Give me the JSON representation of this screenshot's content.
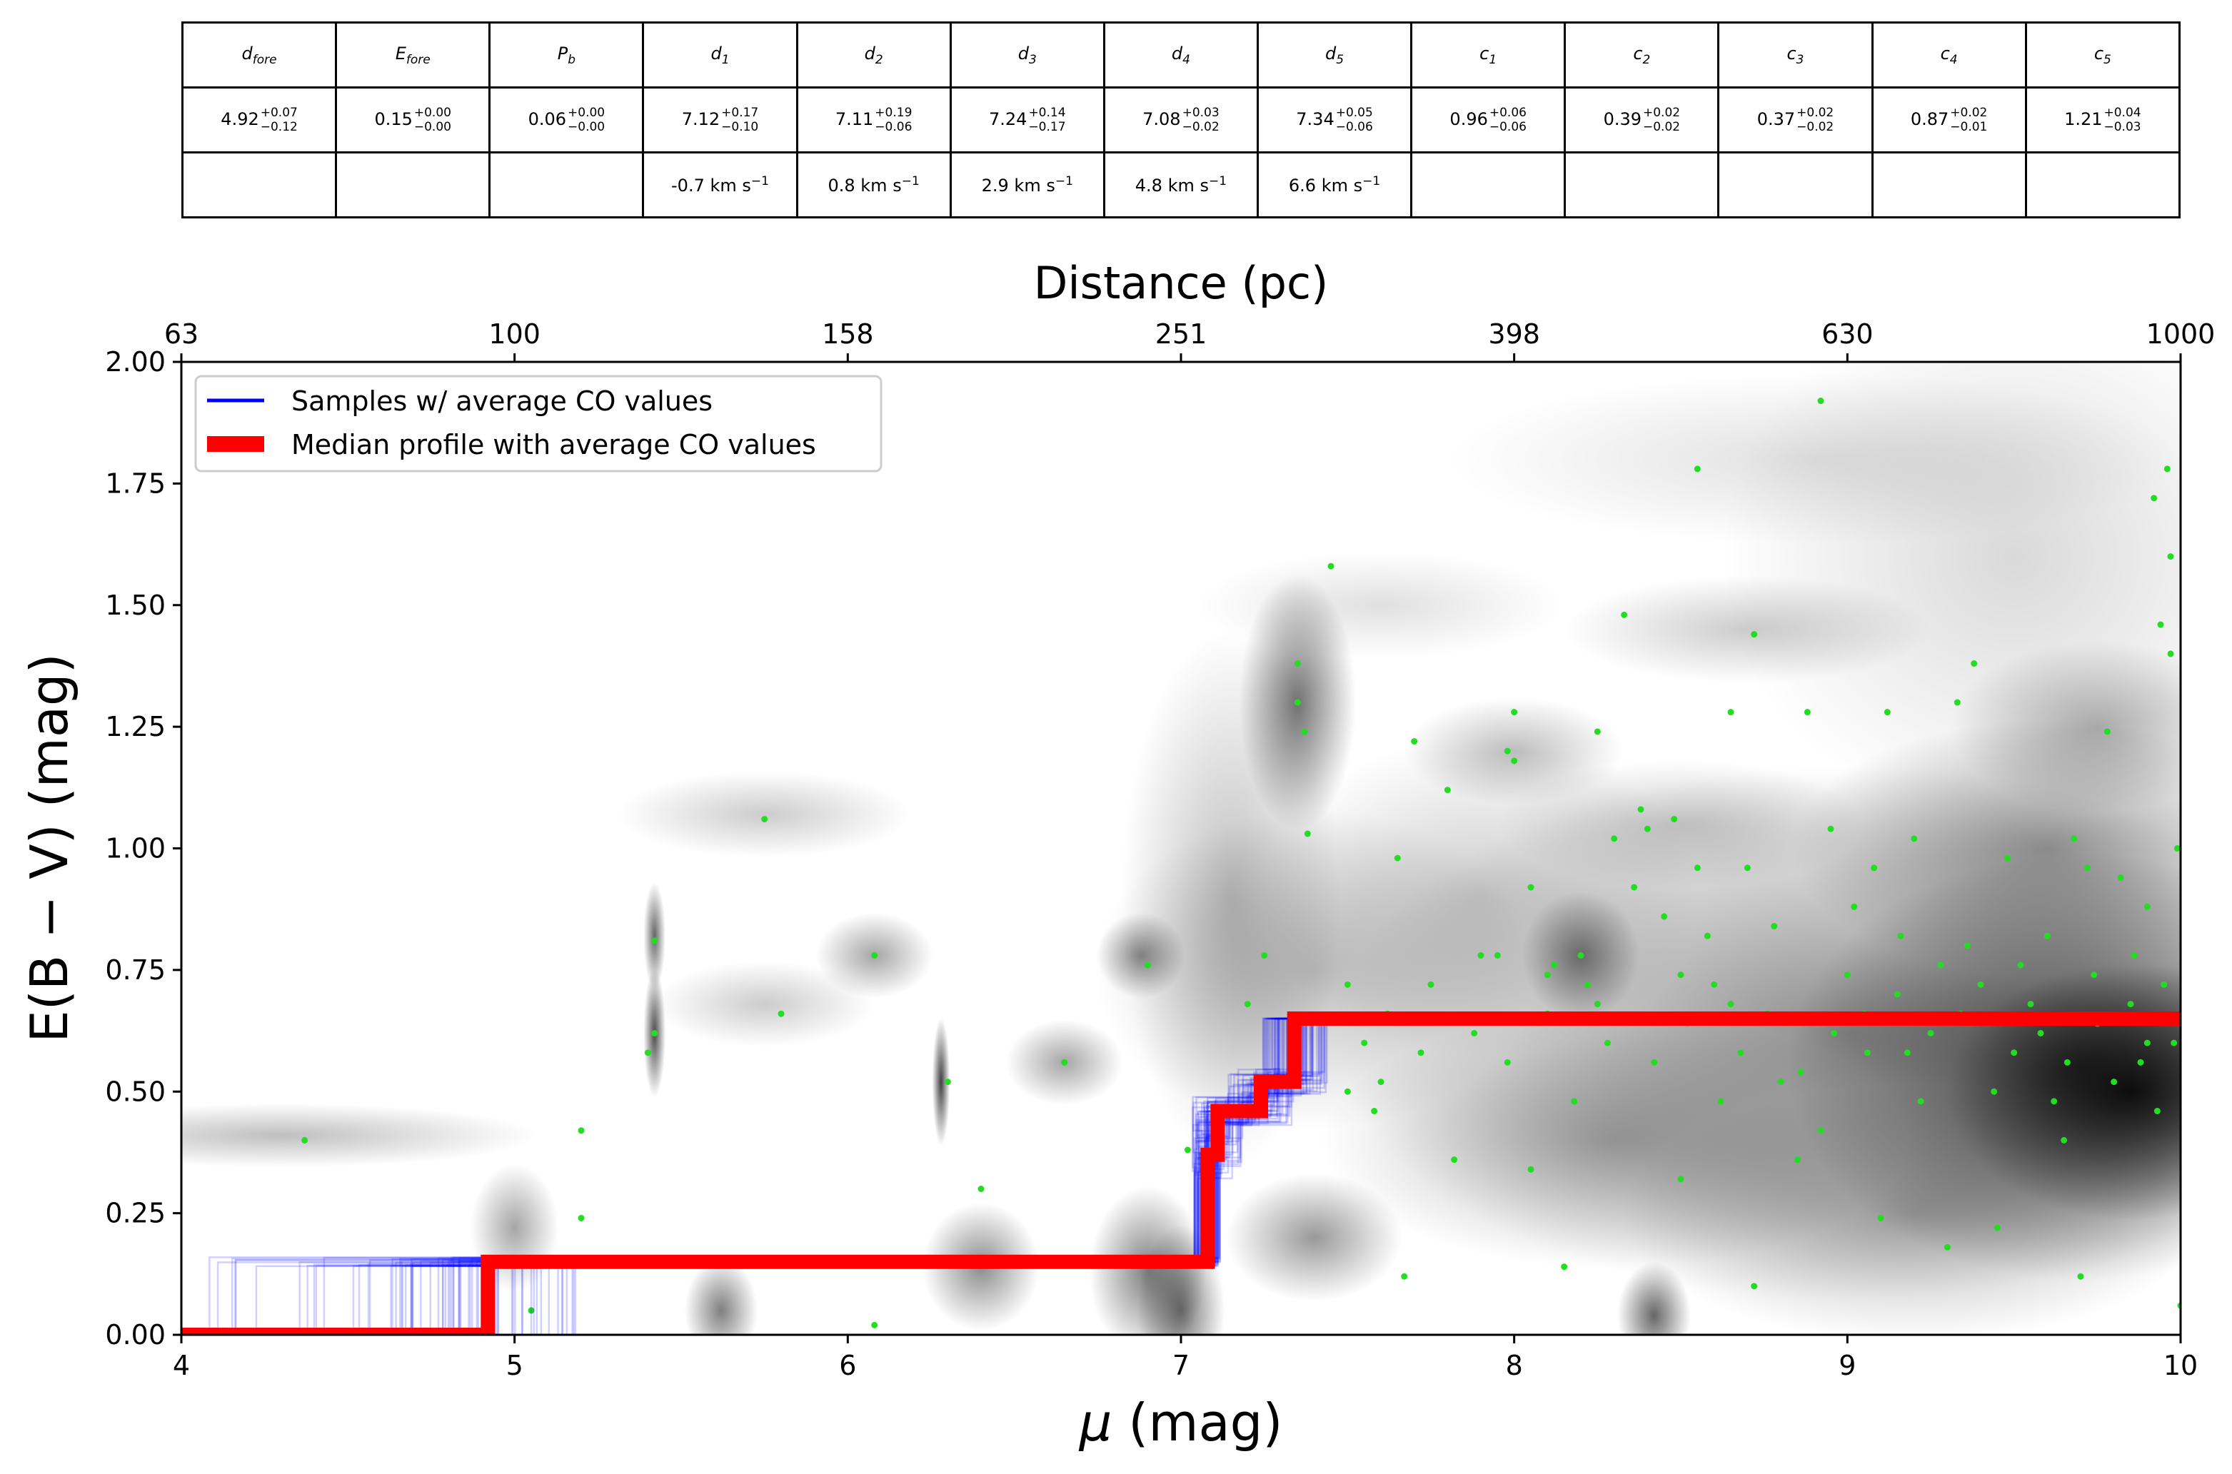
{
  "table": {
    "headers": [
      {
        "base": "d",
        "sub": "fore"
      },
      {
        "base": "E",
        "sub": "fore"
      },
      {
        "base": "P",
        "sub": "b"
      },
      {
        "base": "d",
        "sub": "1"
      },
      {
        "base": "d",
        "sub": "2"
      },
      {
        "base": "d",
        "sub": "3"
      },
      {
        "base": "d",
        "sub": "4"
      },
      {
        "base": "d",
        "sub": "5"
      },
      {
        "base": "c",
        "sub": "1"
      },
      {
        "base": "c",
        "sub": "2"
      },
      {
        "base": "c",
        "sub": "3"
      },
      {
        "base": "c",
        "sub": "4"
      },
      {
        "base": "c",
        "sub": "5"
      }
    ],
    "values": [
      {
        "v": "4.92",
        "plus": "+0.07",
        "minus": "−0.12"
      },
      {
        "v": "0.15",
        "plus": "+0.00",
        "minus": "−0.00"
      },
      {
        "v": "0.06",
        "plus": "+0.00",
        "minus": "−0.00"
      },
      {
        "v": "7.12",
        "plus": "+0.17",
        "minus": "−0.10"
      },
      {
        "v": "7.11",
        "plus": "+0.19",
        "minus": "−0.06"
      },
      {
        "v": "7.24",
        "plus": "+0.14",
        "minus": "−0.17"
      },
      {
        "v": "7.08",
        "plus": "+0.03",
        "minus": "−0.02"
      },
      {
        "v": "7.34",
        "plus": "+0.05",
        "minus": "−0.06"
      },
      {
        "v": "0.96",
        "plus": "+0.06",
        "minus": "−0.06"
      },
      {
        "v": "0.39",
        "plus": "+0.02",
        "minus": "−0.02"
      },
      {
        "v": "0.37",
        "plus": "+0.02",
        "minus": "−0.02"
      },
      {
        "v": "0.87",
        "plus": "+0.02",
        "minus": "−0.01"
      },
      {
        "v": "1.21",
        "plus": "+0.04",
        "minus": "−0.03"
      }
    ],
    "velocities": [
      "",
      "",
      "",
      "-0.7 km s",
      "0.8 km s",
      "2.9 km s",
      "4.8 km s",
      "6.6 km s",
      "",
      "",
      "",
      "",
      ""
    ],
    "velocity_exponent": "−1"
  },
  "chart_data": {
    "type": "scatter",
    "title": "",
    "xlabel_symbol": "μ",
    "xlabel_unit": " (mag)",
    "ylabel": "E(B − V) (mag)",
    "top_xlabel": "Distance (pc)",
    "xlim": [
      4,
      10
    ],
    "ylim": [
      0,
      2
    ],
    "xticks": [
      4,
      5,
      6,
      7,
      8,
      9,
      10
    ],
    "yticks": [
      "0.00",
      "0.25",
      "0.50",
      "0.75",
      "1.00",
      "1.25",
      "1.50",
      "1.75",
      "2.00"
    ],
    "top_ticks": [
      {
        "mu": 4,
        "label": "63"
      },
      {
        "mu": 5,
        "label": "100"
      },
      {
        "mu": 6,
        "label": "158"
      },
      {
        "mu": 7,
        "label": "251"
      },
      {
        "mu": 8,
        "label": "398"
      },
      {
        "mu": 9,
        "label": "630"
      },
      {
        "mu": 10,
        "label": "1000"
      }
    ],
    "legend": {
      "position": "upper-left",
      "items": [
        {
          "label": "Samples  w/ average CO values",
          "color": "#0000ff"
        },
        {
          "label": "Median profile with average CO values",
          "color": "#ff0000"
        }
      ]
    },
    "colors": {
      "samples": "#0000ff",
      "median": "#ff0000",
      "stars": "#22dd22",
      "density": "#000000"
    },
    "median_profile": [
      {
        "x": 4.0,
        "y": 0.0
      },
      {
        "x": 4.92,
        "y": 0.0
      },
      {
        "x": 4.92,
        "y": 0.15
      },
      {
        "x": 7.08,
        "y": 0.15
      },
      {
        "x": 7.08,
        "y": 0.37
      },
      {
        "x": 7.11,
        "y": 0.37
      },
      {
        "x": 7.11,
        "y": 0.46
      },
      {
        "x": 7.24,
        "y": 0.46
      },
      {
        "x": 7.24,
        "y": 0.52
      },
      {
        "x": 7.34,
        "y": 0.52
      },
      {
        "x": 7.34,
        "y": 0.65
      },
      {
        "x": 10.0,
        "y": 0.65
      }
    ],
    "density_blobs": [
      {
        "x": 4.3,
        "y": 0.41,
        "sx": 0.35,
        "sy": 0.03,
        "a": 0.25
      },
      {
        "x": 5.0,
        "y": 0.22,
        "sx": 0.06,
        "sy": 0.06,
        "a": 0.35
      },
      {
        "x": 5.42,
        "y": 0.62,
        "sx": 0.015,
        "sy": 0.06,
        "a": 0.7
      },
      {
        "x": 5.42,
        "y": 0.82,
        "sx": 0.015,
        "sy": 0.05,
        "a": 0.6
      },
      {
        "x": 5.62,
        "y": 0.05,
        "sx": 0.05,
        "sy": 0.05,
        "a": 0.5
      },
      {
        "x": 5.75,
        "y": 1.07,
        "sx": 0.2,
        "sy": 0.04,
        "a": 0.2
      },
      {
        "x": 5.75,
        "y": 0.68,
        "sx": 0.15,
        "sy": 0.04,
        "a": 0.2
      },
      {
        "x": 6.08,
        "y": 0.78,
        "sx": 0.08,
        "sy": 0.04,
        "a": 0.35
      },
      {
        "x": 6.28,
        "y": 0.52,
        "sx": 0.012,
        "sy": 0.06,
        "a": 0.75
      },
      {
        "x": 6.4,
        "y": 0.14,
        "sx": 0.08,
        "sy": 0.06,
        "a": 0.45
      },
      {
        "x": 6.65,
        "y": 0.56,
        "sx": 0.08,
        "sy": 0.04,
        "a": 0.35
      },
      {
        "x": 6.88,
        "y": 0.78,
        "sx": 0.06,
        "sy": 0.04,
        "a": 0.45
      },
      {
        "x": 6.9,
        "y": 0.13,
        "sx": 0.08,
        "sy": 0.08,
        "a": 0.5
      },
      {
        "x": 7.0,
        "y": 0.05,
        "sx": 0.06,
        "sy": 0.08,
        "a": 0.55
      },
      {
        "x": 7.35,
        "y": 1.3,
        "sx": 0.08,
        "sy": 0.12,
        "a": 0.55
      },
      {
        "x": 7.4,
        "y": 0.2,
        "sx": 0.12,
        "sy": 0.06,
        "a": 0.4
      },
      {
        "x": 7.15,
        "y": 0.9,
        "sx": 0.15,
        "sy": 0.25,
        "a": 0.25
      },
      {
        "x": 7.4,
        "y": 0.75,
        "sx": 0.3,
        "sy": 0.15,
        "a": 0.25
      },
      {
        "x": 7.6,
        "y": 1.5,
        "sx": 0.25,
        "sy": 0.05,
        "a": 0.12
      },
      {
        "x": 7.9,
        "y": 0.9,
        "sx": 0.3,
        "sy": 0.15,
        "a": 0.2
      },
      {
        "x": 8.2,
        "y": 0.78,
        "sx": 0.08,
        "sy": 0.06,
        "a": 0.45
      },
      {
        "x": 8.0,
        "y": 1.2,
        "sx": 0.15,
        "sy": 0.05,
        "a": 0.25
      },
      {
        "x": 8.3,
        "y": 0.4,
        "sx": 0.4,
        "sy": 0.12,
        "a": 0.3
      },
      {
        "x": 8.42,
        "y": 0.04,
        "sx": 0.05,
        "sy": 0.05,
        "a": 0.6
      },
      {
        "x": 8.5,
        "y": 1.05,
        "sx": 0.25,
        "sy": 0.06,
        "a": 0.2
      },
      {
        "x": 8.7,
        "y": 1.45,
        "sx": 0.25,
        "sy": 0.05,
        "a": 0.2
      },
      {
        "x": 8.9,
        "y": 1.8,
        "sx": 0.5,
        "sy": 0.08,
        "a": 0.12
      },
      {
        "x": 9.0,
        "y": 0.62,
        "sx": 0.7,
        "sy": 0.25,
        "a": 0.45
      },
      {
        "x": 9.7,
        "y": 0.55,
        "sx": 0.4,
        "sy": 0.2,
        "a": 0.7
      },
      {
        "x": 9.85,
        "y": 0.5,
        "sx": 0.25,
        "sy": 0.12,
        "a": 0.85
      },
      {
        "x": 9.6,
        "y": 1.0,
        "sx": 0.35,
        "sy": 0.12,
        "a": 0.4
      },
      {
        "x": 9.75,
        "y": 1.25,
        "sx": 0.2,
        "sy": 0.08,
        "a": 0.3
      },
      {
        "x": 9.5,
        "y": 1.6,
        "sx": 0.4,
        "sy": 0.25,
        "a": 0.15
      },
      {
        "x": 9.2,
        "y": 0.25,
        "sx": 0.4,
        "sy": 0.12,
        "a": 0.3
      }
    ],
    "stars": [
      [
        4.37,
        0.4
      ],
      [
        5.05,
        0.05
      ],
      [
        5.2,
        0.42
      ],
      [
        5.2,
        0.24
      ],
      [
        5.4,
        0.58
      ],
      [
        5.42,
        0.81
      ],
      [
        5.42,
        0.62
      ],
      [
        5.75,
        1.06
      ],
      [
        5.8,
        0.66
      ],
      [
        6.08,
        0.78
      ],
      [
        6.08,
        0.02
      ],
      [
        6.3,
        0.52
      ],
      [
        6.4,
        0.3
      ],
      [
        6.65,
        0.56
      ],
      [
        6.9,
        0.76
      ],
      [
        7.02,
        0.38
      ],
      [
        7.2,
        0.68
      ],
      [
        7.25,
        0.78
      ],
      [
        7.35,
        1.38
      ],
      [
        7.35,
        1.3
      ],
      [
        7.37,
        1.24
      ],
      [
        7.38,
        1.03
      ],
      [
        7.45,
        1.58
      ],
      [
        7.5,
        0.5
      ],
      [
        7.5,
        0.72
      ],
      [
        7.58,
        0.46
      ],
      [
        7.6,
        0.52
      ],
      [
        7.65,
        0.98
      ],
      [
        7.67,
        0.12
      ],
      [
        7.7,
        1.22
      ],
      [
        7.75,
        0.72
      ],
      [
        7.8,
        1.12
      ],
      [
        7.9,
        0.78
      ],
      [
        7.95,
        0.78
      ],
      [
        7.98,
        1.2
      ],
      [
        8.0,
        1.28
      ],
      [
        8.0,
        1.18
      ],
      [
        8.05,
        0.34
      ],
      [
        8.05,
        0.92
      ],
      [
        8.1,
        0.74
      ],
      [
        8.12,
        0.76
      ],
      [
        8.15,
        0.14
      ],
      [
        8.2,
        0.78
      ],
      [
        8.22,
        0.72
      ],
      [
        8.25,
        1.24
      ],
      [
        8.25,
        0.68
      ],
      [
        8.3,
        1.02
      ],
      [
        8.33,
        1.48
      ],
      [
        8.38,
        1.08
      ],
      [
        8.4,
        1.04
      ],
      [
        8.45,
        0.86
      ],
      [
        8.48,
        1.06
      ],
      [
        8.5,
        0.74
      ],
      [
        8.5,
        0.32
      ],
      [
        8.55,
        1.78
      ],
      [
        8.55,
        0.96
      ],
      [
        8.58,
        0.82
      ],
      [
        8.6,
        0.72
      ],
      [
        8.65,
        0.68
      ],
      [
        8.65,
        1.28
      ],
      [
        8.7,
        0.96
      ],
      [
        8.72,
        1.44
      ],
      [
        8.72,
        0.1
      ],
      [
        8.78,
        0.84
      ],
      [
        8.8,
        0.52
      ],
      [
        8.85,
        0.36
      ],
      [
        8.88,
        1.28
      ],
      [
        8.92,
        0.42
      ],
      [
        8.92,
        1.92
      ],
      [
        8.95,
        1.04
      ],
      [
        9.0,
        0.74
      ],
      [
        9.02,
        0.88
      ],
      [
        9.05,
        0.66
      ],
      [
        9.08,
        0.96
      ],
      [
        9.1,
        0.24
      ],
      [
        9.12,
        1.28
      ],
      [
        9.15,
        0.7
      ],
      [
        9.18,
        0.58
      ],
      [
        9.2,
        1.02
      ],
      [
        9.25,
        0.62
      ],
      [
        9.3,
        0.18
      ],
      [
        9.33,
        1.3
      ],
      [
        9.36,
        0.8
      ],
      [
        9.38,
        1.38
      ],
      [
        9.4,
        0.72
      ],
      [
        9.45,
        0.22
      ],
      [
        9.48,
        0.98
      ],
      [
        9.5,
        0.58
      ],
      [
        9.55,
        0.68
      ],
      [
        9.6,
        0.82
      ],
      [
        9.62,
        0.48
      ],
      [
        9.65,
        0.4
      ],
      [
        9.68,
        1.02
      ],
      [
        9.7,
        0.12
      ],
      [
        9.72,
        0.96
      ],
      [
        9.75,
        0.64
      ],
      [
        9.78,
        1.24
      ],
      [
        9.8,
        0.52
      ],
      [
        9.82,
        0.94
      ],
      [
        9.85,
        0.68
      ],
      [
        9.88,
        0.56
      ],
      [
        9.9,
        0.88
      ],
      [
        9.92,
        1.72
      ],
      [
        9.93,
        0.46
      ],
      [
        9.95,
        0.72
      ],
      [
        9.96,
        1.78
      ],
      [
        9.97,
        1.6
      ],
      [
        9.98,
        0.6
      ],
      [
        9.99,
        1.0
      ],
      [
        10.0,
        0.06
      ],
      [
        9.94,
        1.46
      ],
      [
        9.97,
        1.4
      ],
      [
        9.9,
        0.6
      ],
      [
        9.86,
        0.78
      ],
      [
        9.74,
        0.74
      ],
      [
        9.66,
        0.56
      ],
      [
        9.58,
        0.62
      ],
      [
        9.52,
        0.76
      ],
      [
        9.44,
        0.5
      ],
      [
        9.34,
        0.66
      ],
      [
        9.28,
        0.76
      ],
      [
        9.22,
        0.48
      ],
      [
        9.16,
        0.82
      ],
      [
        9.06,
        0.58
      ],
      [
        8.96,
        0.62
      ],
      [
        8.86,
        0.54
      ],
      [
        8.76,
        0.66
      ],
      [
        8.68,
        0.58
      ],
      [
        8.62,
        0.48
      ],
      [
        8.52,
        0.64
      ],
      [
        8.42,
        0.56
      ],
      [
        8.36,
        0.92
      ],
      [
        8.28,
        0.6
      ],
      [
        8.18,
        0.48
      ],
      [
        8.1,
        0.66
      ],
      [
        7.98,
        0.56
      ],
      [
        7.88,
        0.62
      ],
      [
        7.82,
        0.36
      ],
      [
        7.72,
        0.58
      ],
      [
        7.62,
        0.66
      ],
      [
        7.55,
        0.6
      ]
    ]
  }
}
